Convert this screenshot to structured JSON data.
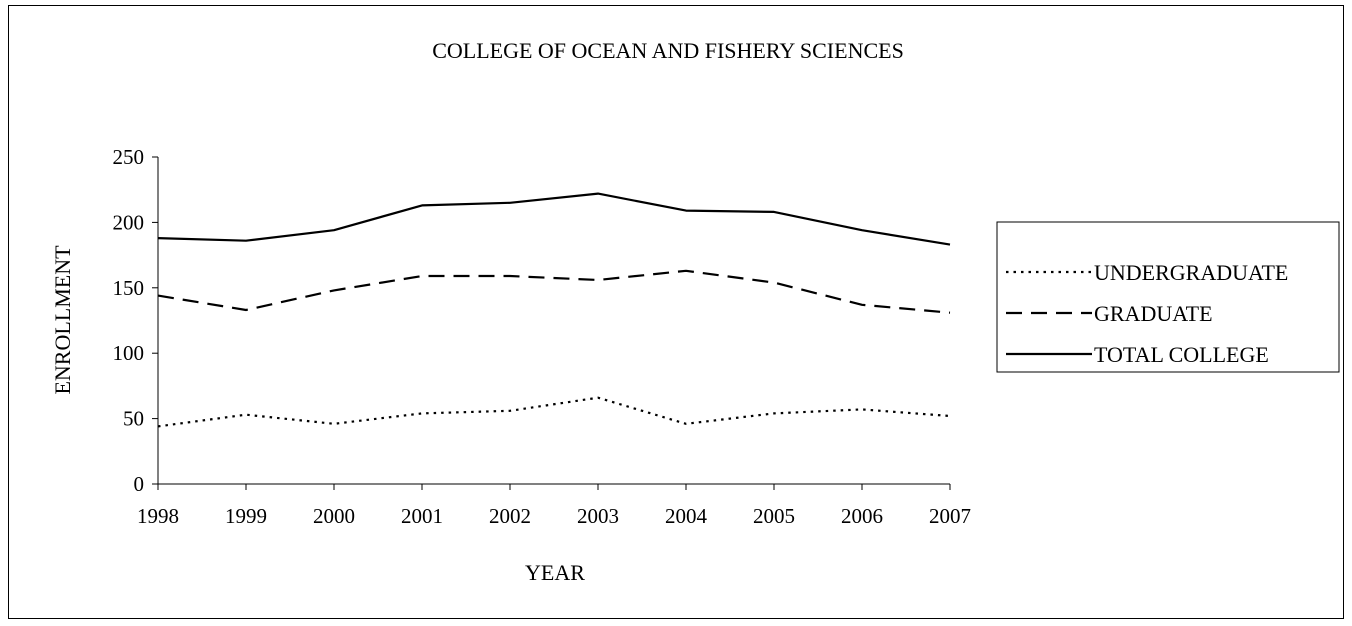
{
  "chart_data": {
    "type": "line",
    "title": "COLLEGE OF OCEAN AND FISHERY SCIENCES",
    "xlabel": "YEAR",
    "ylabel": "ENROLLMENT",
    "categories": [
      "1998",
      "1999",
      "2000",
      "2001",
      "2002",
      "2003",
      "2004",
      "2005",
      "2006",
      "2007"
    ],
    "ylim": [
      0,
      250
    ],
    "yticks": [
      "0",
      "50",
      "100",
      "150",
      "200",
      "250"
    ],
    "grid": false,
    "legend_position": "right",
    "series": [
      {
        "name": "UNDERGRADUATE",
        "style": "dotted",
        "color": "#000000",
        "values": [
          44,
          53,
          46,
          54,
          56,
          66,
          46,
          54,
          57,
          52
        ]
      },
      {
        "name": "GRADUATE",
        "style": "dashed",
        "color": "#000000",
        "values": [
          144,
          133,
          148,
          159,
          159,
          156,
          163,
          154,
          137,
          131
        ]
      },
      {
        "name": "TOTAL COLLEGE",
        "style": "solid",
        "color": "#000000",
        "values": [
          188,
          186,
          194,
          213,
          215,
          222,
          209,
          208,
          194,
          183
        ]
      }
    ]
  }
}
